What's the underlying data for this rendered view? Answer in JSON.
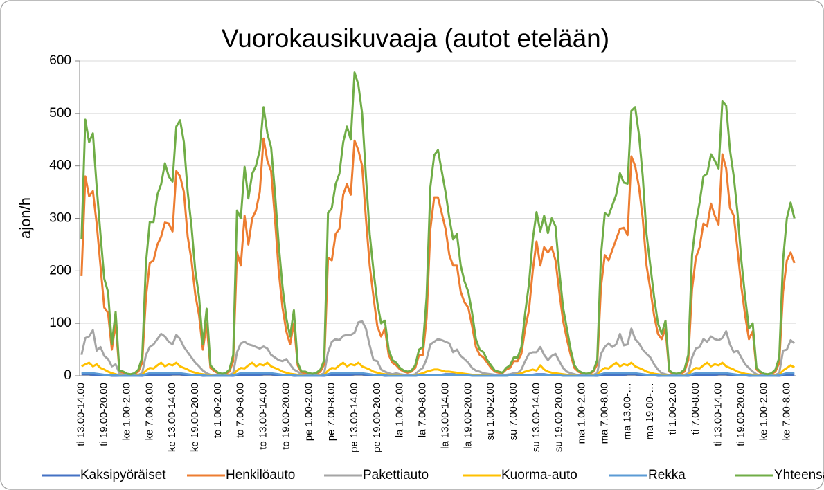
{
  "chart_data": {
    "type": "line",
    "title": "Vuorokausikuvaaja (autot etelään)",
    "y_label": "ajon/h",
    "ylim": [
      0,
      600
    ],
    "yticks": [
      0,
      100,
      200,
      300,
      400,
      500,
      600
    ],
    "grid": true,
    "legend": "bottom",
    "categories": [
      "ti 13.00-14.00",
      null,
      null,
      null,
      null,
      null,
      "ti 19.00-20.00",
      null,
      null,
      null,
      null,
      null,
      "ke 1.00-2.00",
      null,
      null,
      null,
      null,
      null,
      "ke 7.00-8.00",
      null,
      null,
      null,
      null,
      null,
      "ke 13.00-14.00",
      null,
      null,
      null,
      null,
      null,
      "ke 19.00-20.00",
      null,
      null,
      null,
      null,
      null,
      "to 1.00-2.00",
      null,
      null,
      null,
      null,
      null,
      "to 7.00-8.00",
      null,
      null,
      null,
      null,
      null,
      "to 13.00-14.00",
      null,
      null,
      null,
      null,
      null,
      "to 19.00-20.00",
      null,
      null,
      null,
      null,
      null,
      "pe 1.00-2.00",
      null,
      null,
      null,
      null,
      null,
      "pe 7.00-8.00",
      null,
      null,
      null,
      null,
      null,
      "pe 13.00-14.00",
      null,
      null,
      null,
      null,
      null,
      "pe 19.00-20.00",
      null,
      null,
      null,
      null,
      null,
      "la 1.00-2.00",
      null,
      null,
      null,
      null,
      null,
      "la 7.00-8.00",
      null,
      null,
      null,
      null,
      null,
      "la 13.00-14.00",
      null,
      null,
      null,
      null,
      null,
      "la 19.00-20.00",
      null,
      null,
      null,
      null,
      null,
      "su 1.00-2.00",
      null,
      null,
      null,
      null,
      null,
      "su 7.00-8.00",
      null,
      null,
      null,
      null,
      null,
      "su 13.00-14.00",
      null,
      null,
      null,
      null,
      null,
      "su 19.00-20.00",
      null,
      null,
      null,
      null,
      null,
      "ma 1.00-2.00",
      null,
      null,
      null,
      null,
      null,
      "ma 7.00-8.00",
      null,
      null,
      null,
      null,
      null,
      "ma 13.00-…",
      null,
      null,
      null,
      null,
      null,
      "ma 19.00-…",
      null,
      null,
      null,
      null,
      null,
      "ti 1.00-2.00",
      null,
      null,
      null,
      null,
      null,
      "ti 7.00-8.00",
      null,
      null,
      null,
      null,
      null,
      "ti 13.00-14.00",
      null,
      null,
      null,
      null,
      null,
      "ti 19.00-20.00",
      null,
      null,
      null,
      null,
      null,
      "ke 1.00-2.00",
      null,
      null,
      null,
      null,
      null,
      "ke 7.00-8.00",
      null,
      null
    ],
    "series": [
      {
        "name": "Kaksipyöräiset",
        "color": "#4472c4",
        "values": [
          3,
          3,
          3,
          2,
          2,
          1,
          1,
          1,
          0,
          0,
          0,
          0,
          0,
          0,
          0,
          0,
          0,
          1,
          2,
          2,
          2,
          2,
          2,
          2,
          3,
          3,
          3,
          2,
          2,
          1,
          1,
          1,
          0,
          0,
          0,
          0,
          0,
          0,
          0,
          0,
          0,
          1,
          2,
          2,
          2,
          2,
          2,
          2,
          3,
          3,
          3,
          2,
          2,
          1,
          1,
          1,
          0,
          0,
          0,
          0,
          0,
          0,
          0,
          0,
          0,
          1,
          2,
          2,
          2,
          2,
          2,
          2,
          3,
          3,
          3,
          2,
          2,
          1,
          1,
          1,
          0,
          0,
          0,
          0,
          0,
          0,
          0,
          0,
          0,
          1,
          2,
          2,
          2,
          2,
          2,
          2,
          3,
          3,
          3,
          2,
          2,
          1,
          1,
          1,
          0,
          0,
          0,
          0,
          0,
          0,
          0,
          0,
          0,
          1,
          2,
          2,
          2,
          2,
          2,
          2,
          3,
          3,
          3,
          2,
          2,
          1,
          1,
          1,
          0,
          0,
          0,
          0,
          0,
          0,
          0,
          0,
          0,
          1,
          2,
          2,
          2,
          2,
          2,
          2,
          3,
          3,
          3,
          2,
          2,
          1,
          1,
          1,
          0,
          0,
          0,
          0,
          0,
          0,
          0,
          0,
          0,
          1,
          2,
          2,
          2,
          2,
          2,
          2,
          3,
          3,
          3,
          2,
          2,
          1,
          1,
          1,
          0,
          0,
          0,
          0,
          0,
          0,
          0,
          0,
          0,
          1,
          2,
          2,
          2
        ]
      },
      {
        "name": "Henkilöauto",
        "color": "#ed7d31",
        "values": [
          190,
          380,
          342,
          352,
          290,
          210,
          130,
          120,
          50,
          100,
          8,
          6,
          3,
          2,
          4,
          8,
          25,
          150,
          215,
          220,
          250,
          265,
          292,
          290,
          275,
          390,
          380,
          350,
          265,
          220,
          155,
          115,
          50,
          100,
          15,
          9,
          5,
          3,
          4,
          8,
          28,
          235,
          210,
          305,
          250,
          300,
          315,
          350,
          452,
          410,
          390,
          300,
          200,
          130,
          85,
          60,
          100,
          20,
          6,
          6,
          4,
          3,
          4,
          8,
          22,
          225,
          220,
          270,
          280,
          345,
          365,
          345,
          448,
          430,
          400,
          300,
          210,
          150,
          95,
          75,
          90,
          40,
          25,
          20,
          12,
          8,
          6,
          8,
          15,
          40,
          40,
          110,
          280,
          340,
          340,
          310,
          280,
          230,
          210,
          210,
          160,
          140,
          130,
          95,
          55,
          40,
          35,
          25,
          15,
          8,
          6,
          5,
          12,
          15,
          28,
          28,
          42,
          90,
          125,
          200,
          256,
          210,
          245,
          235,
          245,
          220,
          160,
          105,
          70,
          40,
          15,
          8,
          5,
          3,
          4,
          8,
          22,
          170,
          230,
          220,
          240,
          260,
          280,
          282,
          268,
          418,
          400,
          360,
          300,
          210,
          165,
          115,
          80,
          70,
          90,
          8,
          4,
          3,
          4,
          8,
          30,
          165,
          225,
          245,
          290,
          285,
          328,
          305,
          288,
          422,
          395,
          320,
          305,
          240,
          170,
          115,
          70,
          85,
          12,
          6,
          3,
          2,
          4,
          8,
          25,
          160,
          220,
          235,
          215
        ]
      },
      {
        "name": "Pakettiauto",
        "color": "#a5a5a5",
        "values": [
          40,
          72,
          75,
          87,
          48,
          55,
          38,
          32,
          18,
          22,
          5,
          1,
          1,
          1,
          1,
          2,
          5,
          40,
          55,
          60,
          70,
          80,
          75,
          65,
          60,
          78,
          70,
          55,
          45,
          35,
          25,
          18,
          10,
          5,
          2,
          1,
          1,
          1,
          1,
          2,
          5,
          45,
          62,
          65,
          60,
          58,
          55,
          52,
          56,
          52,
          40,
          35,
          30,
          28,
          32,
          22,
          12,
          8,
          3,
          1,
          1,
          1,
          1,
          2,
          5,
          45,
          65,
          70,
          68,
          76,
          78,
          78,
          82,
          102,
          104,
          90,
          58,
          30,
          28,
          12,
          8,
          5,
          3,
          5,
          3,
          2,
          1,
          1,
          3,
          10,
          15,
          32,
          60,
          65,
          70,
          68,
          65,
          62,
          45,
          50,
          38,
          32,
          25,
          15,
          10,
          8,
          5,
          4,
          3,
          2,
          1,
          1,
          2,
          3,
          5,
          5,
          12,
          28,
          42,
          45,
          45,
          55,
          40,
          30,
          38,
          42,
          28,
          15,
          8,
          5,
          3,
          1,
          1,
          1,
          1,
          2,
          5,
          42,
          55,
          62,
          55,
          60,
          80,
          58,
          60,
          90,
          70,
          62,
          50,
          42,
          35,
          22,
          12,
          5,
          3,
          1,
          1,
          1,
          1,
          2,
          5,
          35,
          52,
          55,
          70,
          65,
          75,
          70,
          68,
          72,
          85,
          60,
          45,
          48,
          35,
          22,
          15,
          8,
          3,
          1,
          1,
          1,
          1,
          2,
          5,
          48,
          50,
          68,
          62
        ]
      },
      {
        "name": "Kuorma-auto",
        "color": "#ffc000",
        "values": [
          18,
          22,
          25,
          18,
          22,
          15,
          12,
          8,
          5,
          3,
          1,
          0,
          0,
          0,
          0,
          1,
          2,
          10,
          15,
          14,
          20,
          25,
          18,
          22,
          20,
          25,
          18,
          15,
          12,
          8,
          6,
          4,
          3,
          2,
          1,
          0,
          0,
          0,
          0,
          1,
          2,
          10,
          15,
          14,
          20,
          25,
          18,
          22,
          20,
          25,
          18,
          15,
          12,
          8,
          6,
          4,
          3,
          2,
          1,
          0,
          0,
          0,
          0,
          1,
          2,
          10,
          15,
          14,
          20,
          25,
          18,
          22,
          20,
          25,
          18,
          15,
          12,
          8,
          6,
          4,
          3,
          2,
          1,
          1,
          1,
          0,
          0,
          0,
          1,
          3,
          5,
          8,
          10,
          12,
          12,
          10,
          8,
          8,
          7,
          6,
          5,
          4,
          3,
          2,
          2,
          1,
          1,
          1,
          0,
          0,
          0,
          0,
          0,
          1,
          2,
          3,
          5,
          8,
          10,
          12,
          10,
          20,
          12,
          8,
          6,
          5,
          4,
          3,
          2,
          1,
          1,
          0,
          0,
          0,
          0,
          1,
          2,
          10,
          15,
          14,
          20,
          25,
          18,
          22,
          20,
          25,
          18,
          15,
          12,
          8,
          6,
          4,
          3,
          2,
          1,
          0,
          0,
          0,
          0,
          1,
          2,
          10,
          15,
          14,
          20,
          25,
          18,
          22,
          20,
          25,
          18,
          15,
          12,
          8,
          6,
          4,
          3,
          2,
          1,
          0,
          0,
          0,
          0,
          1,
          2,
          10,
          15,
          20,
          16
        ]
      },
      {
        "name": "Rekka",
        "color": "#5b9bd5",
        "values": [
          5,
          6,
          6,
          5,
          4,
          3,
          2,
          2,
          1,
          1,
          0,
          0,
          0,
          0,
          0,
          0,
          1,
          3,
          5,
          5,
          6,
          6,
          6,
          5,
          6,
          6,
          5,
          4,
          3,
          2,
          2,
          1,
          1,
          0,
          0,
          0,
          0,
          0,
          0,
          0,
          1,
          3,
          5,
          5,
          6,
          6,
          6,
          5,
          6,
          6,
          5,
          4,
          3,
          2,
          2,
          1,
          1,
          0,
          0,
          0,
          0,
          0,
          0,
          0,
          1,
          3,
          5,
          5,
          6,
          6,
          6,
          5,
          6,
          6,
          5,
          4,
          3,
          2,
          2,
          1,
          1,
          0,
          0,
          0,
          0,
          0,
          0,
          0,
          0,
          1,
          1,
          2,
          2,
          2,
          2,
          2,
          2,
          2,
          2,
          1,
          1,
          1,
          1,
          0,
          0,
          0,
          0,
          0,
          0,
          0,
          0,
          0,
          0,
          1,
          1,
          2,
          2,
          2,
          2,
          2,
          2,
          2,
          2,
          1,
          1,
          1,
          1,
          0,
          0,
          0,
          0,
          0,
          0,
          0,
          0,
          0,
          1,
          3,
          5,
          5,
          6,
          6,
          6,
          5,
          6,
          6,
          5,
          4,
          3,
          2,
          2,
          1,
          1,
          0,
          0,
          0,
          0,
          0,
          0,
          0,
          1,
          3,
          5,
          5,
          6,
          6,
          6,
          5,
          6,
          6,
          5,
          4,
          3,
          2,
          2,
          1,
          1,
          0,
          0,
          0,
          0,
          0,
          0,
          0,
          1,
          3,
          5,
          5,
          6
        ]
      },
      {
        "name": "Yhteensä",
        "color": "#70ad47",
        "values": [
          260,
          488,
          445,
          462,
          360,
          270,
          185,
          160,
          60,
          122,
          10,
          8,
          4,
          3,
          5,
          12,
          35,
          215,
          293,
          293,
          345,
          365,
          405,
          380,
          370,
          475,
          487,
          445,
          350,
          285,
          200,
          150,
          60,
          128,
          20,
          12,
          6,
          4,
          5,
          12,
          40,
          315,
          300,
          398,
          338,
          385,
          400,
          430,
          512,
          462,
          435,
          350,
          250,
          170,
          110,
          75,
          125,
          25,
          8,
          8,
          5,
          4,
          6,
          12,
          30,
          310,
          320,
          365,
          385,
          445,
          475,
          450,
          578,
          555,
          500,
          380,
          270,
          200,
          140,
          100,
          105,
          50,
          30,
          25,
          15,
          10,
          8,
          10,
          20,
          50,
          55,
          150,
          360,
          420,
          430,
          390,
          350,
          300,
          260,
          270,
          210,
          180,
          160,
          120,
          70,
          50,
          45,
          30,
          20,
          10,
          8,
          6,
          15,
          20,
          35,
          35,
          55,
          120,
          175,
          260,
          312,
          275,
          305,
          272,
          300,
          285,
          200,
          130,
          90,
          50,
          20,
          10,
          6,
          4,
          5,
          10,
          30,
          230,
          310,
          305,
          325,
          345,
          386,
          368,
          366,
          505,
          512,
          460,
          380,
          270,
          210,
          150,
          100,
          80,
          105,
          10,
          5,
          4,
          6,
          12,
          40,
          230,
          290,
          330,
          380,
          385,
          422,
          410,
          395,
          523,
          515,
          430,
          380,
          310,
          220,
          150,
          90,
          100,
          15,
          8,
          4,
          3,
          5,
          12,
          35,
          220,
          300,
          330,
          300
        ]
      }
    ]
  }
}
